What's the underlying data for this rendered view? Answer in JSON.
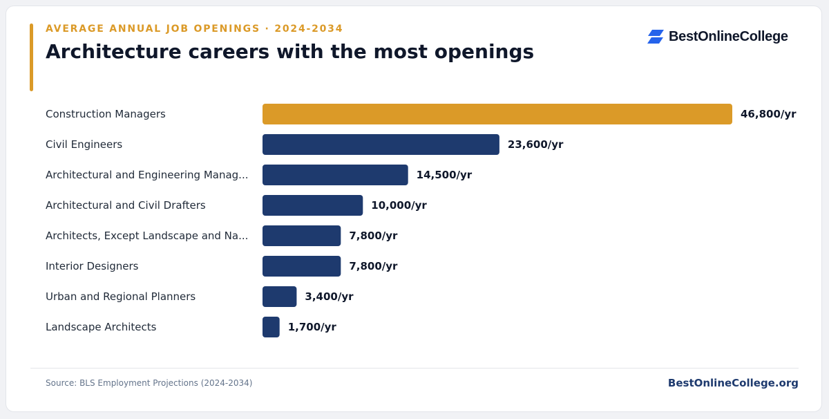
{
  "header": {
    "eyebrow": "AVERAGE ANNUAL JOB OPENINGS · 2024-2034",
    "title": "Architecture careers with the most openings"
  },
  "brand": {
    "logo_text": "BestOnlineCollege",
    "logo_icon": "stacked-parallelogram-icon",
    "logo_color": "#2563eb"
  },
  "footer": {
    "source": "Source: BLS Employment Projections (2024-2034)",
    "site": "BestOnlineCollege.org"
  },
  "colors": {
    "highlight": "#db9a28",
    "bar": "#1e3a6e",
    "label": "#1f2937",
    "value": "#0f172a"
  },
  "chart_data": {
    "type": "bar",
    "orientation": "horizontal",
    "title": "Architecture careers with the most openings",
    "xlabel": "",
    "ylabel": "",
    "xlim": [
      0,
      46800
    ],
    "grid": false,
    "categories": [
      "Construction Managers",
      "Civil Engineers",
      "Architectural and Engineering Manag...",
      "Architectural and Civil Drafters",
      "Architects, Except Landscape and Na...",
      "Interior Designers",
      "Urban and Regional Planners",
      "Landscape Architects"
    ],
    "values": [
      46800,
      23600,
      14500,
      10000,
      7800,
      7800,
      3400,
      1700
    ],
    "value_labels": [
      "46,800/yr",
      "23,600/yr",
      "14,500/yr",
      "10,000/yr",
      "7,800/yr",
      "7,800/yr",
      "3,400/yr",
      "1,700/yr"
    ],
    "highlight_index": 0
  }
}
